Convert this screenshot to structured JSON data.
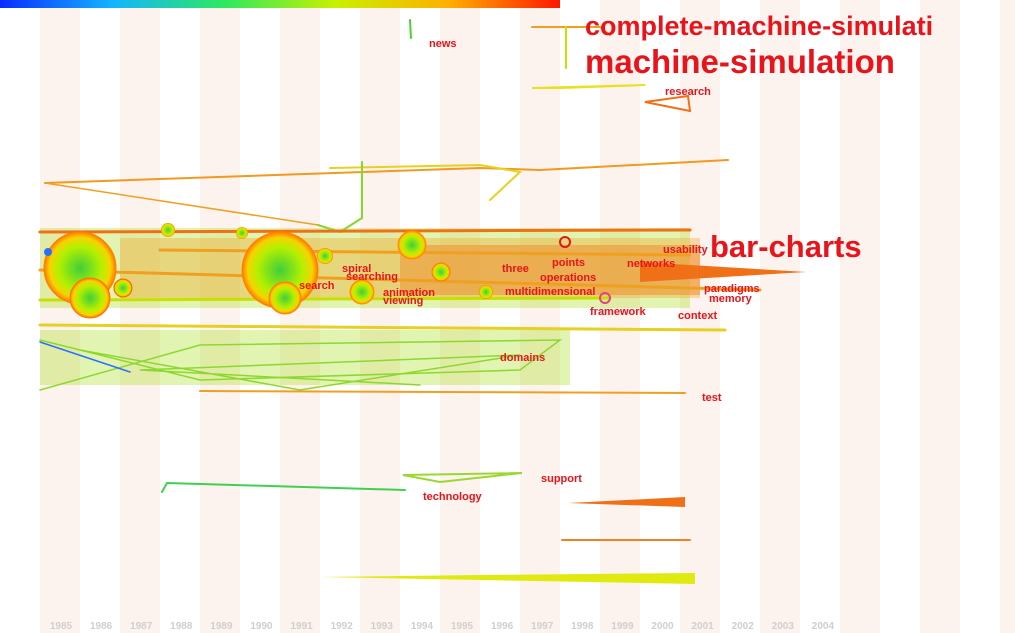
{
  "timeline": {
    "years": [
      1985,
      1986,
      1987,
      1988,
      1989,
      1990,
      1991,
      1992,
      1993,
      1994,
      1995,
      1996,
      1997,
      1998,
      1999,
      2000,
      2001,
      2002,
      2003,
      2004
    ],
    "labels": [
      "complete-machine-simulati",
      "machine-simulation",
      "research",
      "news",
      "bar-charts",
      "usability",
      "networks",
      "points",
      "three",
      "spiral",
      "searching",
      "operations",
      "search",
      "paradigms",
      "multidimensional",
      "animation",
      "memory",
      "viewing",
      "framework",
      "context",
      "domains",
      "test",
      "support",
      "technology"
    ]
  }
}
